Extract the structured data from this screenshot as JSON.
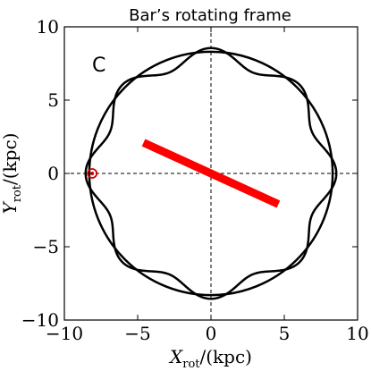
{
  "chart_data": {
    "type": "line",
    "title": "Bar’s rotating frame",
    "panel_label": "C",
    "xlabel": {
      "main": "X",
      "sub": "rot",
      "unit": "/(kpc)"
    },
    "ylabel": {
      "main": "Y",
      "sub": "rot",
      "unit": "/(kpc)"
    },
    "xlim": [
      -10,
      10
    ],
    "ylim": [
      -10,
      10
    ],
    "xticks": [
      -10,
      -5,
      0,
      5,
      10
    ],
    "yticks": [
      -10,
      -5,
      0,
      5,
      10
    ],
    "xtick_labels": [
      "−10",
      "−5",
      "0",
      "5",
      "10"
    ],
    "ytick_labels": [
      "−10",
      "−5",
      "0",
      "5",
      "10"
    ],
    "reference_lines": {
      "x": 0,
      "y": 0,
      "style": "dashed"
    },
    "series": [
      {
        "kind": "circle",
        "center": [
          0,
          0
        ],
        "radius": 8.3,
        "color": "#000000"
      },
      {
        "kind": "wavy_orbit",
        "base_radius": 8.0,
        "amplitude": 0.55,
        "lobes": 8,
        "phase_deg": 0,
        "color": "#000000"
      },
      {
        "kind": "bar",
        "from": [
          -4.6,
          2.1
        ],
        "to": [
          4.6,
          -2.1
        ],
        "color": "#ff0000"
      }
    ],
    "markers": [
      {
        "kind": "sun",
        "x": -8.1,
        "y": 0,
        "color": "#cc0000"
      }
    ]
  }
}
